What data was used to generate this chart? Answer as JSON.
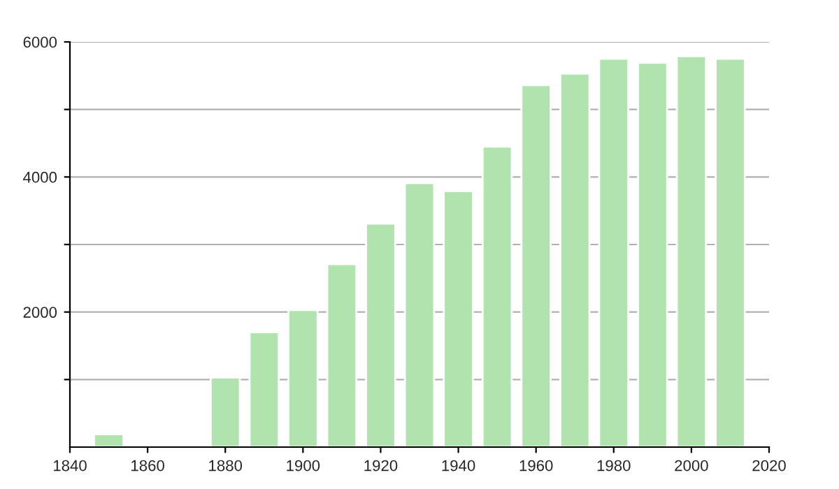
{
  "chart_data": {
    "type": "bar",
    "x": [
      1850,
      1880,
      1890,
      1900,
      1910,
      1920,
      1930,
      1940,
      1950,
      1960,
      1970,
      1980,
      1990,
      2000,
      2010
    ],
    "values": [
      190,
      1030,
      1700,
      2030,
      2710,
      3310,
      3910,
      3790,
      4450,
      5360,
      5530,
      5750,
      5690,
      5790,
      5750
    ],
    "color": "#b0e3ae",
    "xlim": [
      1840,
      2020
    ],
    "xticks": [
      1840,
      1860,
      1880,
      1900,
      1920,
      1940,
      1960,
      1980,
      2000,
      2020
    ],
    "ylim": [
      0,
      6000
    ],
    "yticks": [
      {
        "value": 1000,
        "label": null
      },
      2000,
      {
        "value": 3000,
        "label": null
      },
      4000,
      {
        "value": 5000,
        "label": null
      },
      6000
    ],
    "grid": "y",
    "legend": false
  }
}
